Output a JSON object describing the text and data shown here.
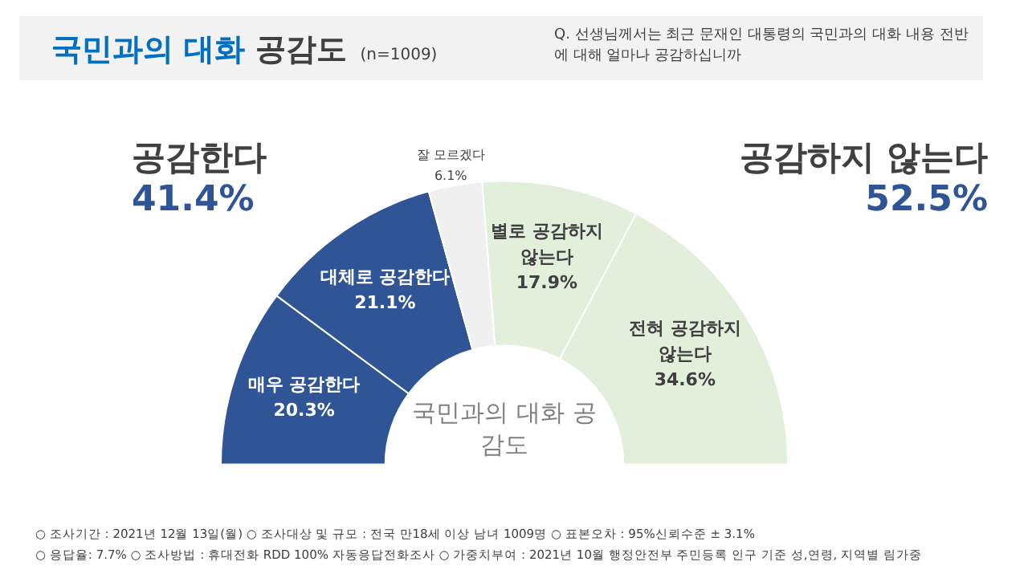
{
  "chart_data": {
    "type": "donut",
    "title": "국민과의 대화 공감도",
    "subtitle": "(n=1009)",
    "categories": [
      "매우 공감한다",
      "대체로 공감한다",
      "잘 모르겠다",
      "별로 공감하지 않는다",
      "전혀 공감하지 않는다"
    ],
    "values": [
      20.3,
      21.1,
      6.1,
      17.9,
      34.6
    ],
    "colors": [
      "#2f5597",
      "#2f5597",
      "#f0f0f0",
      "#e2efda",
      "#e2efda"
    ],
    "value_labels": [
      "20.3%",
      "21.1%",
      "6.1%",
      "17.9%",
      "34.6%"
    ],
    "legend": false,
    "annotations": [
      "공감한다",
      "41.4%",
      "공감하지 않는다",
      "52.5%",
      "국민과의 대화 공감도",
      "Q. 선생님께서는 최근 문재인 대통령의 국민과의 대화 내용 전반에 대해 얼마나 공감하십니까",
      "○ 조사기간 : 2021년 12월 13일(월)   ○ 조사대상 및 규모 : 전국 만18세 이상 남녀 1009명   ○ 표본오차 : 95%신뢰수준 ± 3.1%",
      "○ 응답율: 7.7%   ○ 조사방법 : 휴대전화 RDD 100% 자동응답전화조사   ○ 가중치부여 : 2021년 10월 행정안전부 주민등록 인구 기준 성,연령, 지역별 림가중"
    ]
  }
}
